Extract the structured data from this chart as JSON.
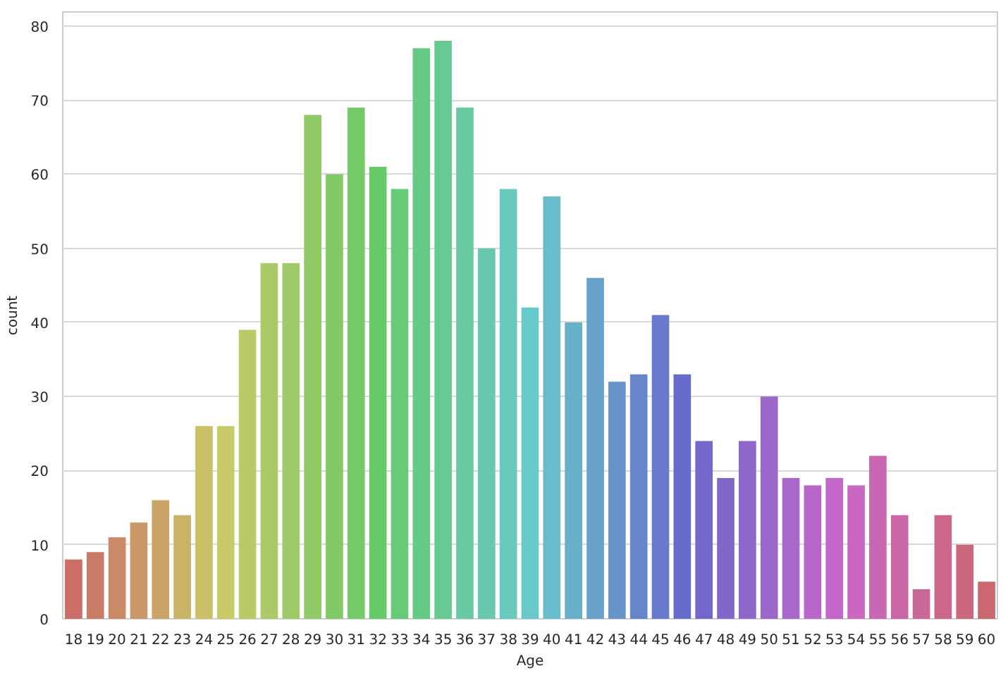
{
  "chart_data": {
    "type": "bar",
    "xlabel": "Age",
    "ylabel": "count",
    "categories": [
      "18",
      "19",
      "20",
      "21",
      "22",
      "23",
      "24",
      "25",
      "26",
      "27",
      "28",
      "29",
      "30",
      "31",
      "32",
      "33",
      "34",
      "35",
      "36",
      "37",
      "38",
      "39",
      "40",
      "41",
      "42",
      "43",
      "44",
      "45",
      "46",
      "47",
      "48",
      "49",
      "50",
      "51",
      "52",
      "53",
      "54",
      "55",
      "56",
      "57",
      "58",
      "59",
      "60"
    ],
    "values": [
      8,
      9,
      11,
      13,
      16,
      14,
      26,
      26,
      39,
      48,
      48,
      68,
      60,
      69,
      61,
      58,
      77,
      78,
      69,
      50,
      58,
      42,
      57,
      40,
      46,
      32,
      33,
      41,
      33,
      24,
      19,
      24,
      30,
      19,
      18,
      19,
      18,
      22,
      14,
      4,
      14,
      10,
      5
    ],
    "colors": [
      "#ca6e67",
      "#ca7b67",
      "#ca8967",
      "#ca9767",
      "#caa567",
      "#cab367",
      "#cac167",
      "#c7ca67",
      "#b9ca67",
      "#abca67",
      "#9eca67",
      "#8fca67",
      "#82ca67",
      "#74ca67",
      "#67ca68",
      "#67ca77",
      "#67ca84",
      "#67ca92",
      "#67caa0",
      "#67caae",
      "#67cabc",
      "#67caca",
      "#67beca",
      "#67b0ca",
      "#67a2ca",
      "#6795ca",
      "#6786ca",
      "#6779ca",
      "#676bca",
      "#7267ca",
      "#8067ca",
      "#8e67ca",
      "#9b67ca",
      "#aa67ca",
      "#b767ca",
      "#c567ca",
      "#ca67c2",
      "#ca67b5",
      "#ca67a7",
      "#ca6799",
      "#ca678b",
      "#ca677d",
      "#ca676f"
    ],
    "ylim": [
      0,
      81.9
    ],
    "yticks": [
      0,
      10,
      20,
      30,
      40,
      50,
      60,
      70,
      80
    ],
    "grid": "y"
  }
}
